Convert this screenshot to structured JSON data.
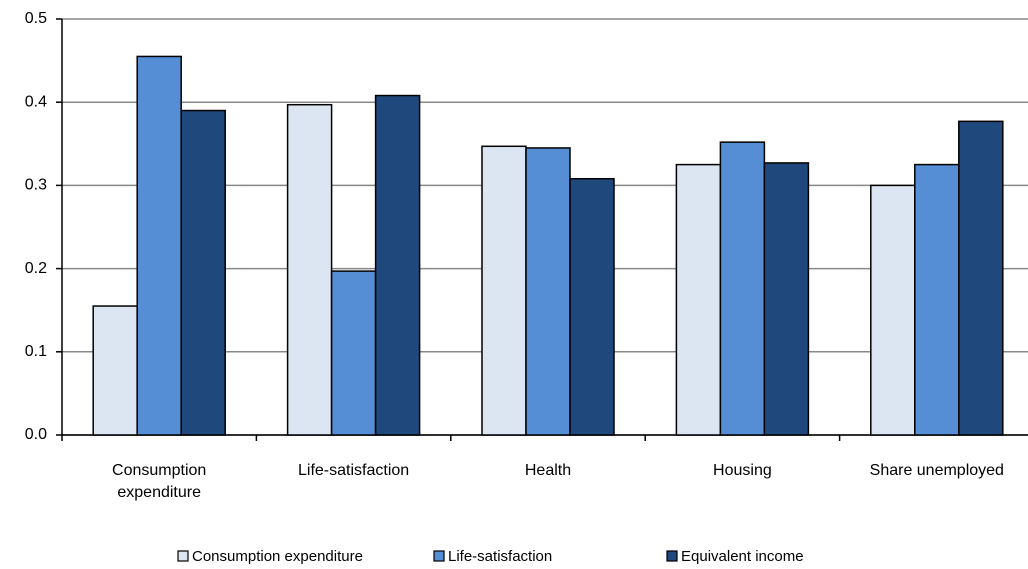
{
  "chart_data": {
    "type": "bar",
    "categories": [
      "Consumption expenditure",
      "Life-satisfaction",
      "Health",
      "Housing",
      "Share unemployed"
    ],
    "series": [
      {
        "name": "Consumption expenditure",
        "color": "#dce6f2",
        "values": [
          0.155,
          0.397,
          0.347,
          0.325,
          0.3
        ]
      },
      {
        "name": "Life-satisfaction",
        "color": "#558ed5",
        "values": [
          0.455,
          0.197,
          0.345,
          0.352,
          0.325
        ]
      },
      {
        "name": "Equivalent income",
        "color": "#1f497d",
        "values": [
          0.39,
          0.408,
          0.308,
          0.327,
          0.377
        ]
      }
    ],
    "ylim": [
      0,
      0.5
    ],
    "yticks": [
      {
        "value": 0,
        "label": "0.0"
      },
      0.1,
      0.2,
      0.3,
      0.4,
      0.5
    ],
    "grid": true,
    "legend": "bottom"
  }
}
